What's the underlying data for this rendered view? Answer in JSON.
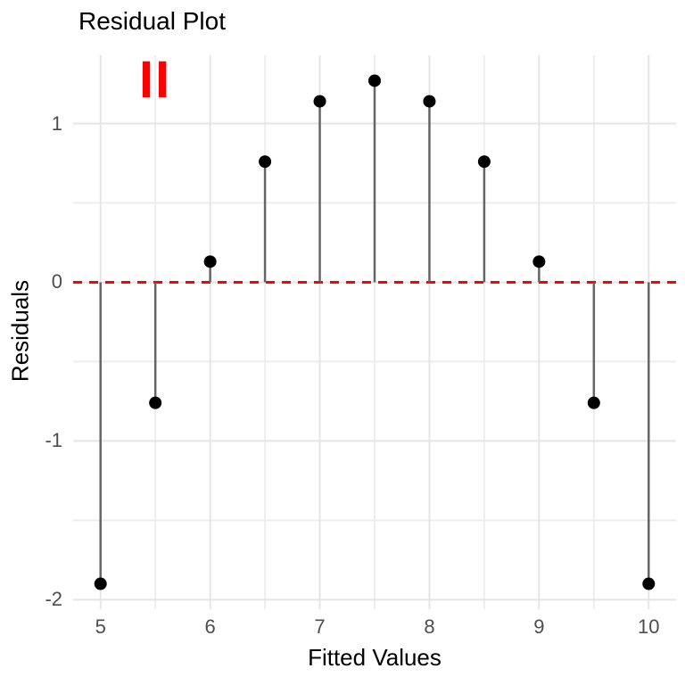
{
  "chart_data": {
    "type": "scatter",
    "subtype": "stem-lollipop",
    "title": "Residual Plot",
    "xlabel": "Fitted Values",
    "ylabel": "Residuals",
    "annotation": {
      "text": "II",
      "x": 5.5,
      "y": 1.27,
      "color": "#FF0000"
    },
    "x": [
      5,
      5.5,
      6,
      6.5,
      7,
      7.5,
      8,
      8.5,
      9,
      9.5,
      10
    ],
    "y": [
      -1.9,
      -0.76,
      0.13,
      0.76,
      1.14,
      1.27,
      1.14,
      0.76,
      0.13,
      -0.76,
      -1.9
    ],
    "xlim": [
      4.75,
      10.25
    ],
    "ylim": [
      -2.06,
      1.43
    ],
    "x_ticks": [
      5,
      6,
      7,
      8,
      9,
      10
    ],
    "y_ticks": [
      -2,
      -1,
      0,
      1
    ],
    "x_minor_ticks": [
      5.5,
      6.5,
      7.5,
      8.5,
      9.5
    ],
    "y_minor_ticks": [
      -1.5,
      -0.5,
      0.5
    ],
    "zero_line": {
      "y": 0,
      "style": "dashed",
      "color": "#FF0000"
    },
    "grid": true,
    "legend": false,
    "colors": {
      "background": "#FFFFFF",
      "grid_major": "#E5E5E5",
      "grid_minor": "#EEEEEE",
      "stem": "#666666",
      "point": "#000000",
      "tick_label": "#4D4D4D",
      "axis_title": "#000000",
      "title": "#000000"
    }
  }
}
